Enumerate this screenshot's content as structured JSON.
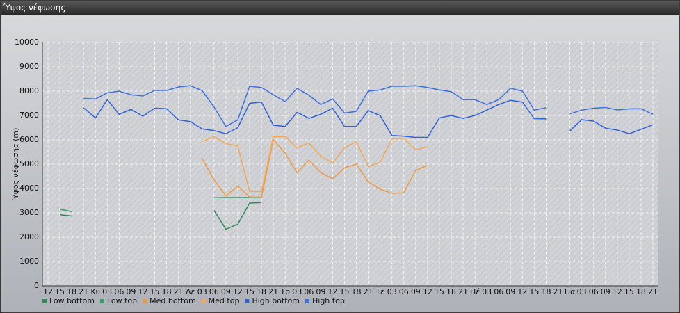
{
  "chart_data": {
    "type": "line",
    "title": "Ύψος νέφωσης",
    "ylabel": "Ύψος νέφωσης (m)",
    "categories": [
      "12",
      "15",
      "18",
      "21",
      "Κυ",
      "03",
      "06",
      "09",
      "12",
      "15",
      "18",
      "21",
      "Δε",
      "03",
      "06",
      "09",
      "12",
      "15",
      "18",
      "21",
      "Τρ",
      "03",
      "06",
      "09",
      "12",
      "15",
      "18",
      "21",
      "Τε",
      "03",
      "06",
      "09",
      "12",
      "15",
      "18",
      "21",
      "Πέ",
      "03",
      "06",
      "09",
      "12",
      "15",
      "18",
      "21",
      "Πα",
      "03",
      "06",
      "09",
      "12",
      "15",
      "18",
      "21"
    ],
    "ylim": [
      0,
      10000
    ],
    "yticks": [
      0,
      1000,
      2000,
      3000,
      4000,
      5000,
      6000,
      7000,
      8000,
      9000,
      10000
    ],
    "grid": true,
    "series": [
      {
        "name": "Low bottom",
        "color": "#2e8b5a",
        "values": [
          null,
          2920,
          2870,
          null,
          null,
          null,
          null,
          null,
          null,
          null,
          null,
          null,
          null,
          null,
          3100,
          2330,
          2530,
          3400,
          3420,
          null,
          null,
          null,
          null,
          null,
          null,
          null,
          null,
          null,
          null,
          null,
          null,
          null,
          null,
          null,
          null,
          null,
          null,
          null,
          null,
          null,
          null,
          null,
          null,
          null,
          null,
          null,
          null,
          null,
          null,
          null,
          null,
          null
        ]
      },
      {
        "name": "Low top",
        "color": "#3a9a68",
        "values": [
          null,
          3150,
          3050,
          null,
          null,
          null,
          null,
          null,
          null,
          null,
          null,
          null,
          null,
          null,
          3620,
          3630,
          3630,
          3630,
          3630,
          null,
          null,
          null,
          null,
          null,
          null,
          null,
          null,
          null,
          null,
          null,
          null,
          null,
          null,
          null,
          null,
          null,
          null,
          null,
          null,
          null,
          null,
          null,
          null,
          null,
          null,
          null,
          null,
          null,
          null,
          null,
          null,
          null
        ]
      },
      {
        "name": "Med bottom",
        "color": "#f09a40",
        "values": [
          null,
          null,
          null,
          null,
          null,
          null,
          null,
          null,
          null,
          null,
          null,
          null,
          null,
          5230,
          4350,
          3700,
          4100,
          3650,
          3650,
          6000,
          5450,
          4650,
          5170,
          4650,
          4400,
          4850,
          5000,
          4280,
          3970,
          3800,
          3820,
          4750,
          4950,
          null,
          null,
          null,
          null,
          null,
          null,
          null,
          null,
          null,
          null,
          null,
          null,
          null,
          null,
          null,
          null,
          null,
          null,
          null
        ]
      },
      {
        "name": "Med top",
        "color": "#f5a855",
        "values": [
          null,
          null,
          null,
          null,
          null,
          null,
          null,
          null,
          null,
          null,
          null,
          null,
          null,
          5930,
          6130,
          5850,
          5750,
          3870,
          3870,
          6130,
          6130,
          5680,
          5870,
          5330,
          5050,
          5680,
          5920,
          4900,
          5070,
          6030,
          6070,
          5580,
          5720,
          null,
          null,
          null,
          null,
          null,
          null,
          null,
          null,
          null,
          null,
          null,
          null,
          null,
          null,
          null,
          null,
          null,
          null,
          null
        ]
      },
      {
        "name": "High bottom",
        "color": "#2f62d8",
        "values": [
          null,
          null,
          null,
          7320,
          6900,
          7650,
          7050,
          7250,
          6970,
          7300,
          7280,
          6820,
          6750,
          6450,
          6380,
          6250,
          6500,
          7500,
          7550,
          6600,
          6550,
          7130,
          6880,
          7050,
          7300,
          6550,
          6550,
          7200,
          7000,
          6180,
          6150,
          6100,
          6100,
          6900,
          7000,
          6880,
          7000,
          7220,
          7450,
          7620,
          7550,
          6870,
          6860,
          null,
          6370,
          6830,
          6770,
          6480,
          6400,
          6250,
          6430,
          6620
        ]
      },
      {
        "name": "High top",
        "color": "#3f6fe0",
        "values": [
          null,
          null,
          null,
          7700,
          7680,
          7930,
          8000,
          7850,
          7800,
          8030,
          8030,
          8170,
          8220,
          8020,
          7350,
          6550,
          6820,
          8200,
          8150,
          7850,
          7570,
          8120,
          7830,
          7450,
          7680,
          7100,
          7170,
          8000,
          8050,
          8200,
          8200,
          8220,
          8150,
          8050,
          7980,
          7650,
          7650,
          7450,
          7650,
          8120,
          8000,
          7220,
          7320,
          null,
          7070,
          7220,
          7300,
          7330,
          7230,
          7270,
          7280,
          7050
        ]
      }
    ]
  }
}
